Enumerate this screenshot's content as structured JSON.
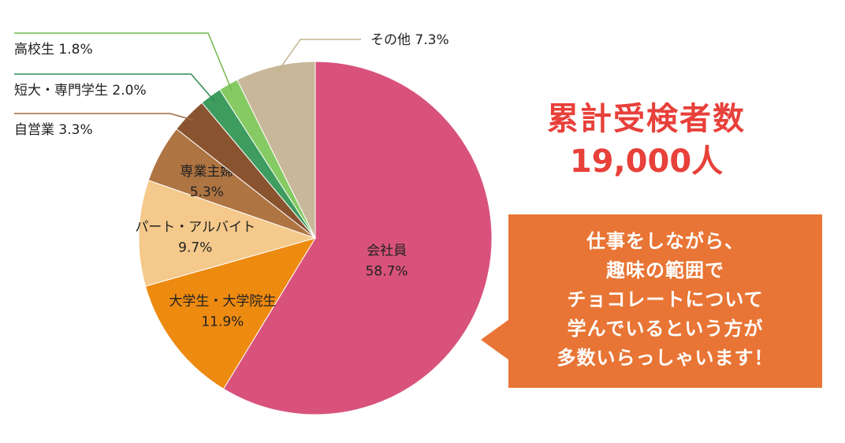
{
  "chart_data": {
    "type": "pie",
    "slices": [
      {
        "label": "会社員",
        "value": 58.7,
        "value_label": "58.7%",
        "color": "#d8527c"
      },
      {
        "label": "大学生・大学院生",
        "value": 11.9,
        "value_label": "11.9%",
        "color": "#ed8a10"
      },
      {
        "label": "パート・アルバイト",
        "value": 9.7,
        "value_label": "9.7%",
        "color": "#f5c98b"
      },
      {
        "label": "専業主婦",
        "value": 5.3,
        "value_label": "5.3%",
        "color": "#ae7442"
      },
      {
        "label": "自営業",
        "value": 3.3,
        "value_label": "3.3%",
        "color": "#8a5330"
      },
      {
        "label": "短大・専門学生",
        "value": 2.0,
        "value_label": "2.0%",
        "color": "#3f9c5f"
      },
      {
        "label": "高校生",
        "value": 1.8,
        "value_label": "1.8%",
        "color": "#85ca63"
      },
      {
        "label": "その他",
        "value": 7.3,
        "value_label": "7.3%",
        "color": "#c8b899"
      }
    ]
  },
  "headline": {
    "title": "累計受検者数",
    "count": "19,000人",
    "color": "#e8403a"
  },
  "callout": {
    "lines": [
      "仕事をしながら、",
      "趣味の範囲で",
      "チョコレートについて",
      "学んでいるという方が",
      "多数いらっしゃいます！"
    ],
    "color": "#e87535"
  }
}
